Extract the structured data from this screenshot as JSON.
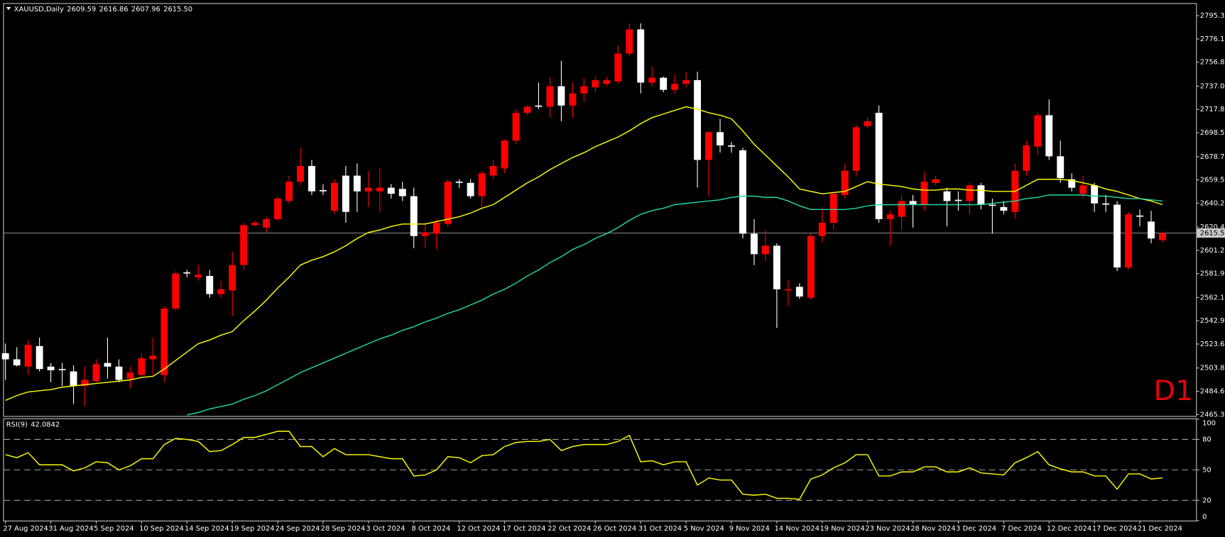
{
  "chart_data": [
    {
      "type": "candlestick",
      "title": "XAUUSD,Daily",
      "annotation": "D1",
      "categories": [
        "27 Aug 2024",
        null,
        null,
        null,
        "31 Aug 2024",
        null,
        null,
        null,
        "5 Sep 2024",
        null,
        null,
        null,
        "10 Sep 2024",
        null,
        null,
        null,
        "14 Sep 2024",
        null,
        null,
        null,
        "19 Sep 2024",
        null,
        null,
        null,
        "24 Sep 2024",
        null,
        null,
        null,
        "28 Sep 2024",
        null,
        null,
        null,
        "3 Oct 2024",
        null,
        null,
        null,
        "8 Oct 2024",
        null,
        null,
        null,
        "12 Oct 2024",
        null,
        null,
        null,
        "17 Oct 2024",
        null,
        null,
        null,
        "22 Oct 2024",
        null,
        null,
        null,
        "26 Oct 2024",
        null,
        null,
        null,
        "31 Oct 2024",
        null,
        null,
        null,
        "5 Nov 2024",
        null,
        null,
        null,
        "9 Nov 2024",
        null,
        null,
        null,
        "14 Nov 2024",
        null,
        null,
        null,
        "19 Nov 2024",
        null,
        null,
        null,
        "23 Nov 2024",
        null,
        null,
        null,
        "28 Nov 2024",
        null,
        null,
        null,
        "3 Dec 2024",
        null,
        null,
        null,
        "7 Dec 2024",
        null,
        null,
        null,
        "12 Dec 2024",
        null,
        null,
        null,
        "17 Dec 2024",
        null,
        null,
        null,
        "21 Dec 2024",
        null,
        null
      ],
      "open": [
        2516,
        2511,
        2505,
        2522,
        2505,
        2503,
        2501,
        2489,
        2493,
        2508,
        2505,
        2495,
        2498,
        2511,
        2498,
        2553,
        2583,
        2579,
        2580,
        2565,
        2568,
        2589,
        2622,
        2620,
        2627,
        2642,
        2658,
        2671,
        2651,
        2634,
        2663,
        2663,
        2650,
        2650,
        2653,
        2652,
        2646,
        2613,
        2615,
        2623,
        2658,
        2657,
        2646,
        2663,
        2669,
        2692,
        2715,
        2721,
        2720,
        2737,
        2721,
        2731,
        2736,
        2739,
        2741,
        2764,
        2784,
        2740,
        2744,
        2734,
        2739,
        2742,
        2676,
        2699,
        2688,
        2684,
        2615,
        2598,
        2605,
        2568,
        2571,
        2562,
        2613,
        2624,
        2647,
        2667,
        2704,
        2715,
        2627,
        2629,
        2642,
        2639,
        2657,
        2650,
        2643,
        2642,
        2655,
        2639,
        2637,
        2633,
        2667,
        2687,
        2713,
        2679,
        2660,
        2648,
        2655,
        2640,
        2639,
        2587,
        2630,
        2625,
        2609.59
      ],
      "high": [
        2524,
        2521,
        2527,
        2529,
        2508,
        2508,
        2506,
        2505,
        2511,
        2529,
        2511,
        2505,
        2516,
        2529,
        2555,
        2584,
        2585,
        2589,
        2585,
        2576,
        2600,
        2624,
        2626,
        2629,
        2646,
        2663,
        2686,
        2676,
        2656,
        2660,
        2671,
        2673,
        2667,
        2669,
        2656,
        2658,
        2653,
        2624,
        2627,
        2660,
        2660,
        2660,
        2667,
        2676,
        2693,
        2718,
        2721,
        2740,
        2744,
        2758,
        2740,
        2744,
        2745,
        2745,
        2771,
        2789,
        2789,
        2753,
        2745,
        2747,
        2749,
        2749,
        2700,
        2710,
        2691,
        2686,
        2627,
        2618,
        2607,
        2577,
        2574,
        2615,
        2637,
        2650,
        2673,
        2705,
        2711,
        2721,
        2634,
        2647,
        2647,
        2666,
        2663,
        2653,
        2650,
        2657,
        2657,
        2644,
        2642,
        2673,
        2692,
        2715,
        2726,
        2692,
        2665,
        2663,
        2657,
        2647,
        2642,
        2633,
        2635,
        2634,
        2616.86
      ],
      "low": [
        2494,
        2505,
        2498,
        2501,
        2492,
        2489,
        2474,
        2472,
        2492,
        2495,
        2492,
        2487,
        2497,
        2498,
        2492,
        2551,
        2579,
        2576,
        2562,
        2562,
        2547,
        2585,
        2621,
        2616,
        2626,
        2640,
        2655,
        2647,
        2647,
        2631,
        2624,
        2633,
        2637,
        2633,
        2644,
        2642,
        2603,
        2603,
        2602,
        2621,
        2653,
        2644,
        2637,
        2660,
        2665,
        2689,
        2713,
        2718,
        2711,
        2708,
        2711,
        2724,
        2732,
        2737,
        2739,
        2762,
        2731,
        2737,
        2732,
        2731,
        2736,
        2653,
        2646,
        2682,
        2682,
        2611,
        2589,
        2592,
        2537,
        2555,
        2561,
        2560,
        2608,
        2618,
        2644,
        2663,
        2702,
        2624,
        2605,
        2618,
        2620,
        2634,
        2655,
        2621,
        2634,
        2631,
        2635,
        2615,
        2631,
        2627,
        2663,
        2680,
        2676,
        2657,
        2650,
        2644,
        2633,
        2633,
        2584,
        2585,
        2621,
        2607,
        2607.96
      ],
      "close": [
        2511,
        2506,
        2523,
        2503,
        2502,
        2502,
        2489,
        2494,
        2507,
        2505,
        2494,
        2500,
        2512,
        2514,
        2553,
        2582,
        2582,
        2581,
        2565,
        2569,
        2589,
        2622,
        2624,
        2627,
        2644,
        2658,
        2671,
        2650,
        2650,
        2657,
        2633,
        2650,
        2653,
        2653,
        2648,
        2646,
        2613,
        2616,
        2624,
        2658,
        2657,
        2646,
        2665,
        2671,
        2692,
        2715,
        2720,
        2720,
        2737,
        2721,
        2731,
        2737,
        2742,
        2742,
        2764,
        2784,
        2740,
        2744,
        2734,
        2739,
        2742,
        2676,
        2699,
        2688,
        2687,
        2615,
        2598,
        2605,
        2569,
        2569,
        2563,
        2613,
        2624,
        2648,
        2667,
        2703,
        2708,
        2627,
        2631,
        2642,
        2639,
        2658,
        2660,
        2642,
        2642,
        2655,
        2639,
        2638,
        2634,
        2667,
        2688,
        2713,
        2679,
        2661,
        2653,
        2655,
        2640,
        2639,
        2587,
        2631,
        2629,
        2611,
        2615.5
      ],
      "up_color": "#ff0000",
      "down_color": "#ffffff",
      "overlays": [
        {
          "color": "#ffff00",
          "values": [
            2477,
            2481,
            2484,
            2485,
            2486,
            2488,
            2489,
            2490,
            2491,
            2492,
            2493,
            2494,
            2496,
            2497,
            2503,
            2510,
            2517,
            2524,
            2527,
            2531,
            2534,
            2543,
            2551,
            2560,
            2570,
            2579,
            2589,
            2593,
            2596,
            2600,
            2605,
            2611,
            2616,
            2618,
            2621,
            2623,
            2623,
            2623,
            2625,
            2627,
            2629,
            2632,
            2636,
            2639,
            2645,
            2651,
            2657,
            2662,
            2668,
            2673,
            2678,
            2682,
            2687,
            2691,
            2695,
            2700,
            2706,
            2711,
            2714,
            2717,
            2720,
            2718,
            2715,
            2713,
            2710,
            2700,
            2689,
            2680,
            2671,
            2662,
            2652,
            2650,
            2648,
            2649,
            2650,
            2654,
            2658,
            2656,
            2655,
            2654,
            2652,
            2651,
            2651,
            2652,
            2652,
            2651,
            2651,
            2650,
            2650,
            2650,
            2655,
            2660,
            2660,
            2660,
            2659,
            2657,
            2655,
            2652,
            2650,
            2647,
            2644,
            2642,
            2639
          ]
        },
        {
          "color": "#20d8a8",
          "values": [
            null,
            null,
            null,
            null,
            null,
            null,
            null,
            null,
            null,
            null,
            null,
            null,
            null,
            null,
            null,
            null,
            2465,
            2467,
            2470,
            2472,
            2474,
            2478,
            2481,
            2485,
            2490,
            2495,
            2500,
            2504,
            2508,
            2512,
            2516,
            2520,
            2524,
            2528,
            2531,
            2535,
            2538,
            2542,
            2545,
            2549,
            2552,
            2556,
            2560,
            2565,
            2569,
            2574,
            2580,
            2585,
            2591,
            2596,
            2602,
            2606,
            2611,
            2615,
            2620,
            2626,
            2631,
            2634,
            2636,
            2639,
            2640,
            2641,
            2642,
            2643,
            2645,
            2646,
            2646,
            2645,
            2645,
            2642,
            2638,
            2635,
            2635,
            2635,
            2635,
            2636,
            2638,
            2639,
            2639,
            2639,
            2639,
            2639,
            2639,
            2639,
            2639,
            2639,
            2639,
            2640,
            2641,
            2642,
            2644,
            2645,
            2647,
            2647,
            2647,
            2647,
            2646,
            2646,
            2645,
            2644,
            2644,
            2643,
            2642
          ]
        }
      ],
      "last_price": {
        "value": 2615.5,
        "label": "2615.50"
      },
      "ylim": [
        2464.1,
        2805.1
      ],
      "yticks": [
        2795.35,
        {
          "value": 2776.1,
          "label": "2776.10"
        },
        2756.85,
        {
          "value": 2737,
          "label": "2737.00"
        },
        {
          "value": 2717.8,
          "label": "2717.80"
        },
        2698.55,
        2678.75,
        {
          "value": 2659.5,
          "label": "2659.50"
        },
        2640.25,
        2620.45,
        {
          "value": 2601.2,
          "label": "2601.20"
        },
        2581.95,
        2562.15,
        {
          "value": 2542.9,
          "label": "2542.90"
        },
        2523.65,
        2503.85,
        {
          "value": 2484.6,
          "label": "2484.60"
        },
        2465.35
      ]
    },
    {
      "type": "line",
      "title": "RSI(9)",
      "color": "#ffff00",
      "values": [
        65,
        62,
        67,
        55,
        55,
        55,
        49,
        52,
        58,
        57,
        50,
        54,
        61,
        61,
        75,
        81,
        80,
        78,
        68,
        69,
        75,
        82,
        82,
        85,
        88,
        88,
        73,
        73,
        63,
        71,
        65,
        65,
        65,
        63,
        61,
        61,
        44,
        45,
        50,
        63,
        62,
        57,
        64,
        65,
        73,
        77,
        78,
        78,
        80,
        69,
        73,
        75,
        75,
        75,
        78,
        84,
        58,
        59,
        55,
        58,
        58,
        35,
        42,
        40,
        40,
        26,
        25,
        26,
        22,
        22,
        21,
        41,
        45,
        52,
        57,
        65,
        65,
        44,
        44,
        48,
        48,
        53,
        53,
        48,
        48,
        52,
        47,
        46,
        45,
        57,
        62,
        68,
        55,
        51,
        48,
        48,
        44,
        44,
        31,
        46,
        46,
        41,
        42.0842
      ],
      "ylim": [
        0,
        100
      ],
      "yticks": [
        0,
        20,
        50,
        80,
        100
      ]
    }
  ]
}
